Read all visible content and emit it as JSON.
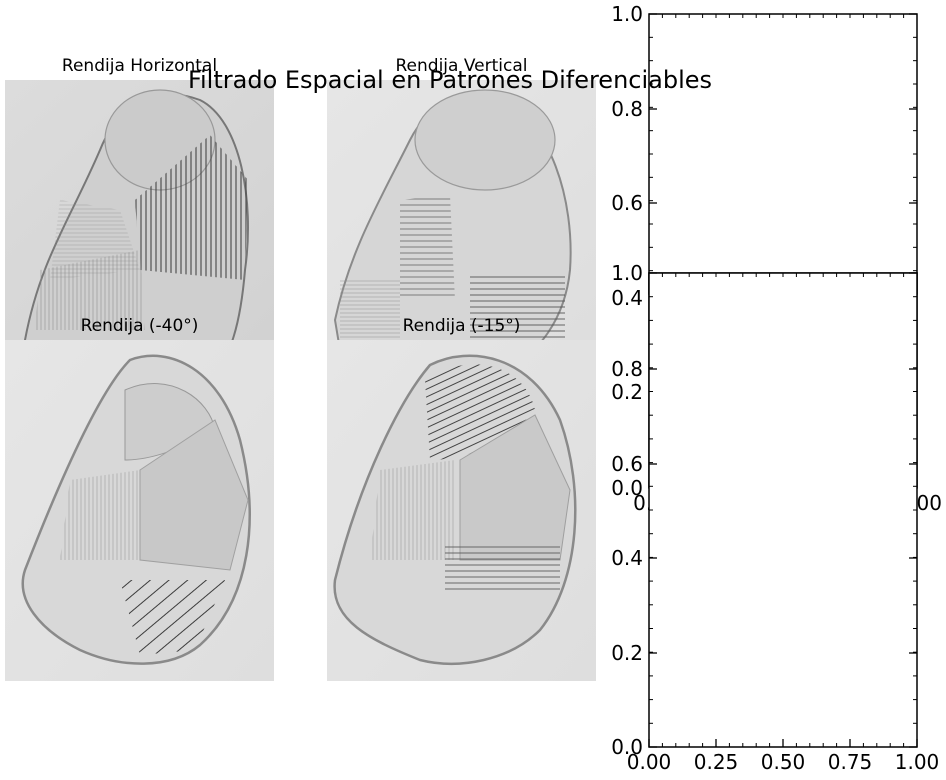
{
  "figure": {
    "suptitle": "Filtrado Espacial en Patrones Diferenciables"
  },
  "panels": [
    {
      "title": "Rendija Horizontal",
      "filter_orientation": "horizontal",
      "dominant_stripes": "vertical"
    },
    {
      "title": "Rendija Vertical",
      "filter_orientation": "vertical",
      "dominant_stripes": "horizontal"
    },
    {
      "title": "Rendija (-40°)",
      "filter_orientation": "-40°",
      "dominant_stripes": "diagonal"
    },
    {
      "title": "Rendija (-15°)",
      "filter_orientation": "-15°",
      "dominant_stripes": "diagonal"
    }
  ],
  "chart_data": [
    {
      "type": "other",
      "title": "",
      "xlabel": "",
      "ylabel": "",
      "xlim": [
        0,
        1
      ],
      "ylim": [
        0,
        1
      ],
      "y_ticks": [
        "0.6",
        "0.8",
        "1.0"
      ],
      "x_ticks": [],
      "grid": false,
      "series": []
    },
    {
      "type": "other",
      "title": "",
      "xlabel": "",
      "ylabel": "",
      "xlim": [
        0,
        1
      ],
      "ylim": [
        0,
        1
      ],
      "y_ticks": [
        "0.0",
        "0.2",
        "0.4"
      ],
      "x_ticks": [
        "0.0",
        "00"
      ],
      "grid": false,
      "series": []
    },
    {
      "type": "other",
      "title": "",
      "xlabel": "",
      "ylabel": "",
      "xlim": [
        0,
        1
      ],
      "ylim": [
        0,
        1
      ],
      "y_ticks": [
        "0.0",
        "0.2",
        "0.4",
        "0.6",
        "0.8",
        "1.0"
      ],
      "x_ticks": [
        "0.00",
        "0.25",
        "0.50",
        "0.75",
        "1.00"
      ],
      "grid": false,
      "series": []
    }
  ]
}
